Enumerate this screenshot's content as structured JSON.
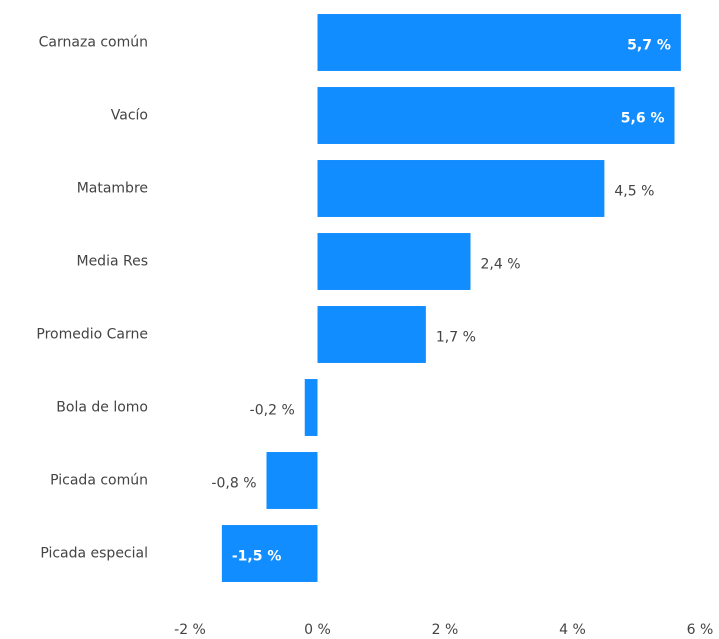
{
  "chart_data": {
    "type": "hbar",
    "categories": [
      "Carnaza común",
      "Vacío",
      "Matambre",
      "Media Res",
      "Promedio Carne",
      "Bola de lomo",
      "Picada común",
      "Picada especial"
    ],
    "values": [
      5.7,
      5.6,
      4.5,
      2.4,
      1.7,
      -0.2,
      -0.8,
      -1.5
    ],
    "value_labels": [
      "5,7 %",
      "5,6 %",
      "4,5 %",
      "2,4 %",
      "1,7 %",
      "-0,2 %",
      "-0,8 %",
      "-1,5 %"
    ],
    "label_positions": [
      "inside",
      "inside",
      "outside",
      "outside",
      "outside",
      "outside",
      "outside",
      "inside"
    ],
    "color": "#118DFF",
    "xlim": [
      -2,
      6
    ],
    "xticks": [
      {
        "value": -2,
        "label": "-2 %"
      },
      {
        "value": 0,
        "label": "0 %"
      },
      {
        "value": 2,
        "label": "2 %"
      },
      {
        "value": 4,
        "label": "4 %"
      },
      {
        "value": 6,
        "label": "6 %"
      }
    ],
    "grid": false
  }
}
